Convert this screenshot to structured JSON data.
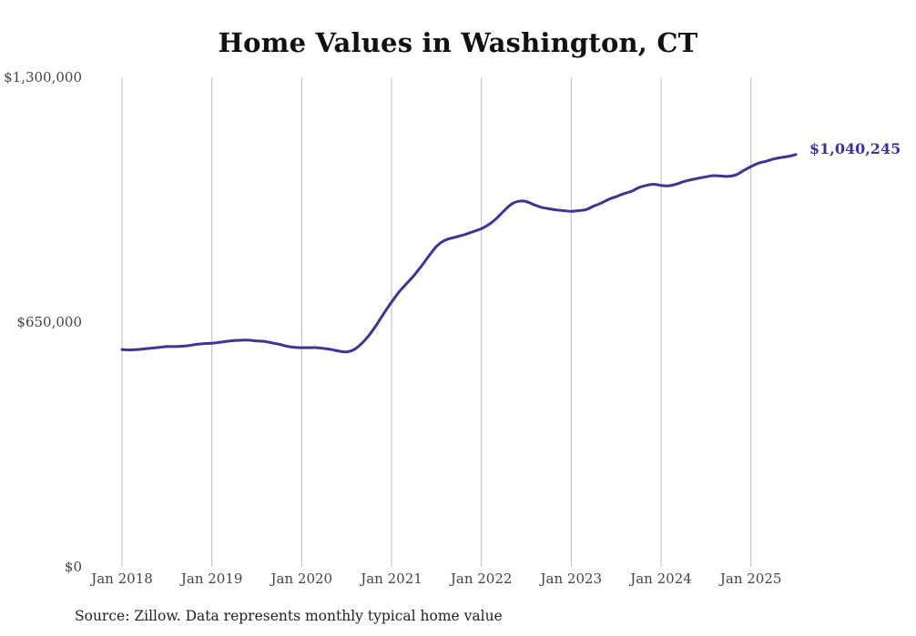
{
  "chart_data": {
    "type": "line",
    "title": "Home Values in Washington, CT",
    "source": "Source: Zillow. Data represents monthly typical home value",
    "xlabel": "",
    "ylabel": "",
    "x_ticks": [
      "Jan 2018",
      "Jan 2019",
      "Jan 2020",
      "Jan 2021",
      "Jan 2022",
      "Jan 2023",
      "Jan 2024",
      "Jan 2025"
    ],
    "y_ticks": [
      "$0",
      "$650,000",
      "$1,300,000"
    ],
    "y_tick_values": [
      0,
      650000,
      1300000
    ],
    "ylim": [
      0,
      1300000
    ],
    "xlim": [
      "2018-01",
      "2025-07"
    ],
    "grid": "vertical",
    "line_color": "#3b3596",
    "end_label": "$1,040,245",
    "series": [
      {
        "x": [
          "2018-01",
          "2018-02",
          "2018-03",
          "2018-04",
          "2018-05",
          "2018-06",
          "2018-07",
          "2018-08",
          "2018-09",
          "2018-10",
          "2018-11",
          "2018-12",
          "2019-01",
          "2019-02",
          "2019-03",
          "2019-04",
          "2019-05",
          "2019-06",
          "2019-07",
          "2019-08",
          "2019-09",
          "2019-10",
          "2019-11",
          "2019-12",
          "2020-01",
          "2020-02",
          "2020-03",
          "2020-04",
          "2020-05",
          "2020-06",
          "2020-07",
          "2020-08",
          "2020-09",
          "2020-10",
          "2020-11",
          "2020-12",
          "2021-01",
          "2021-02",
          "2021-03",
          "2021-04",
          "2021-05",
          "2021-06",
          "2021-07",
          "2021-08",
          "2021-09",
          "2021-10",
          "2021-11",
          "2021-12",
          "2022-01",
          "2022-02",
          "2022-03",
          "2022-04",
          "2022-05",
          "2022-06",
          "2022-07",
          "2022-08",
          "2022-09",
          "2022-10",
          "2022-11",
          "2022-12",
          "2023-01",
          "2023-02",
          "2023-03",
          "2023-04",
          "2023-05",
          "2023-06",
          "2023-07",
          "2023-08",
          "2023-09",
          "2023-10",
          "2023-11",
          "2023-12",
          "2024-01",
          "2024-02",
          "2024-03",
          "2024-04",
          "2024-05",
          "2024-06",
          "2024-07",
          "2024-08",
          "2024-09",
          "2024-10",
          "2024-11",
          "2024-12",
          "2025-01",
          "2025-02",
          "2025-03",
          "2025-04",
          "2025-05",
          "2025-06",
          "2025-07"
        ],
        "values": [
          577000,
          576000,
          577000,
          579000,
          581000,
          583000,
          585000,
          585000,
          586000,
          588000,
          591000,
          593000,
          594000,
          596000,
          599000,
          601000,
          602000,
          602000,
          600000,
          599000,
          595000,
          591000,
          586000,
          583000,
          582000,
          582000,
          582000,
          580000,
          577000,
          573000,
          571000,
          577000,
          593000,
          615000,
          643000,
          674000,
          703000,
          730000,
          752000,
          774000,
          799000,
          826000,
          851000,
          866000,
          873000,
          878000,
          884000,
          891000,
          898000,
          909000,
          925000,
          945000,
          963000,
          971000,
          970000,
          962000,
          955000,
          951000,
          948000,
          946000,
          944000,
          946000,
          949000,
          958000,
          966000,
          976000,
          983000,
          991000,
          997000,
          1007000,
          1013000,
          1016000,
          1013000,
          1012000,
          1016000,
          1023000,
          1028000,
          1032000,
          1036000,
          1039000,
          1038000,
          1037000,
          1041000,
          1052000,
          1063000,
          1072000,
          1077000,
          1083000,
          1087000,
          1090000,
          1040245
        ]
      }
    ]
  }
}
